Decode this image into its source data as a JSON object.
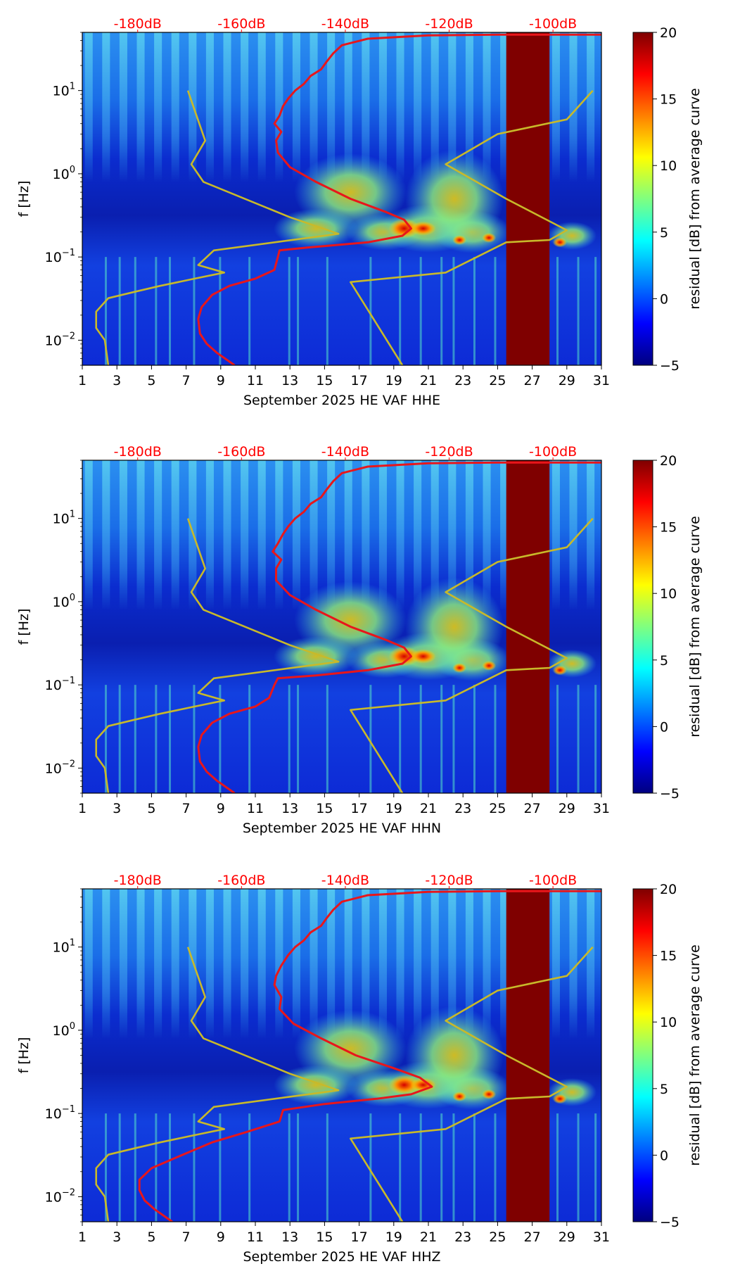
{
  "chart_data": [
    {
      "type": "heatmap",
      "title": "",
      "xlabel": "September 2025 HE VAF  HHE",
      "ylabel": "f [Hz]",
      "x_ticks": [
        "1",
        "3",
        "5",
        "7",
        "9",
        "11",
        "13",
        "15",
        "17",
        "19",
        "21",
        "23",
        "25",
        "27",
        "29",
        "31"
      ],
      "xlim": [
        1,
        31
      ],
      "y_ticks": [
        {
          "value": 0.01,
          "base": "10",
          "exp": "−2"
        },
        {
          "value": 0.1,
          "base": "10",
          "exp": "−1"
        },
        {
          "value": 1,
          "base": "10",
          "exp": "0"
        },
        {
          "value": 10,
          "base": "10",
          "exp": "1"
        }
      ],
      "ylim": [
        0.005,
        50
      ],
      "yscale": "log",
      "db_labels": [
        {
          "x": 4.2,
          "label": "-180dB"
        },
        {
          "x": 10.2,
          "label": "-160dB"
        },
        {
          "x": 16.2,
          "label": "-140dB"
        },
        {
          "x": 22.2,
          "label": "-120dB"
        },
        {
          "x": 28.2,
          "label": "-100dB"
        }
      ],
      "colorbar": {
        "label": "residual [dB] from average curve",
        "min": -5,
        "max": 20,
        "ticks": [
          "20",
          "15",
          "10",
          "5",
          "0",
          "−5"
        ],
        "colormap": "jet"
      },
      "saturated_band": [
        25.5,
        28.0
      ],
      "series": [
        {
          "name": "noise model curve (red)",
          "color": "#e8161b",
          "points": [
            [
              9.8,
              0.005
            ],
            [
              8.8,
              0.007
            ],
            [
              8.2,
              0.009
            ],
            [
              7.8,
              0.012
            ],
            [
              7.7,
              0.018
            ],
            [
              7.9,
              0.025
            ],
            [
              8.5,
              0.035
            ],
            [
              9.5,
              0.045
            ],
            [
              11.0,
              0.055
            ],
            [
              12.1,
              0.07
            ],
            [
              12.3,
              0.1
            ],
            [
              12.4,
              0.12
            ],
            [
              14.0,
              0.13
            ],
            [
              17.5,
              0.15
            ],
            [
              19.5,
              0.18
            ],
            [
              20.0,
              0.22
            ],
            [
              19.6,
              0.28
            ],
            [
              18.5,
              0.35
            ],
            [
              16.5,
              0.5
            ],
            [
              14.5,
              0.8
            ],
            [
              13.0,
              1.2
            ],
            [
              12.3,
              1.8
            ],
            [
              12.2,
              2.5
            ],
            [
              12.5,
              3.2
            ],
            [
              12.1,
              4.0
            ],
            [
              12.4,
              5.0
            ],
            [
              12.6,
              6.5
            ],
            [
              12.9,
              8.0
            ],
            [
              13.3,
              10.0
            ],
            [
              13.8,
              12.0
            ],
            [
              14.2,
              15.0
            ],
            [
              14.8,
              18.0
            ],
            [
              15.1,
              22.0
            ],
            [
              15.5,
              28.0
            ],
            [
              16.0,
              35.0
            ],
            [
              17.5,
              42.0
            ],
            [
              21.0,
              46.0
            ],
            [
              25.0,
              47.0
            ],
            [
              31.0,
              47.0
            ]
          ]
        },
        {
          "name": "reference curve (yellow)",
          "color": "#c8b92a",
          "points": [
            [
              2.5,
              0.005
            ],
            [
              2.3,
              0.01
            ],
            [
              1.8,
              0.014
            ],
            [
              1.8,
              0.022
            ],
            [
              2.5,
              0.032
            ],
            [
              4.0,
              0.038
            ],
            [
              5.5,
              0.045
            ],
            [
              7.5,
              0.055
            ],
            [
              9.2,
              0.065
            ],
            [
              7.7,
              0.08
            ],
            [
              8.6,
              0.12
            ],
            [
              15.8,
              0.19
            ],
            [
              13.0,
              0.3
            ],
            [
              8.0,
              0.8
            ],
            [
              7.3,
              1.3
            ],
            [
              8.1,
              2.5
            ],
            [
              7.6,
              5.0
            ],
            [
              7.1,
              10.0
            ],
            null,
            [
              19.5,
              0.005
            ],
            [
              16.5,
              0.05
            ],
            [
              22.0,
              0.065
            ],
            [
              25.5,
              0.15
            ],
            [
              28.0,
              0.16
            ],
            [
              29.0,
              0.21
            ],
            [
              25.5,
              0.5
            ],
            [
              22.0,
              1.3
            ],
            [
              25.0,
              3.0
            ],
            [
              29.0,
              4.5
            ],
            [
              30.5,
              10.0
            ]
          ]
        }
      ]
    },
    {
      "type": "heatmap",
      "title": "",
      "xlabel": "September 2025 HE VAF  HHN",
      "ylabel": "f [Hz]",
      "x_ticks": [
        "1",
        "3",
        "5",
        "7",
        "9",
        "11",
        "13",
        "15",
        "17",
        "19",
        "21",
        "23",
        "25",
        "27",
        "29",
        "31"
      ],
      "xlim": [
        1,
        31
      ],
      "y_ticks": [
        {
          "value": 0.01,
          "base": "10",
          "exp": "−2"
        },
        {
          "value": 0.1,
          "base": "10",
          "exp": "−1"
        },
        {
          "value": 1,
          "base": "10",
          "exp": "0"
        },
        {
          "value": 10,
          "base": "10",
          "exp": "1"
        }
      ],
      "ylim": [
        0.005,
        50
      ],
      "yscale": "log",
      "db_labels": [
        {
          "x": 4.2,
          "label": "-180dB"
        },
        {
          "x": 10.2,
          "label": "-160dB"
        },
        {
          "x": 16.2,
          "label": "-140dB"
        },
        {
          "x": 22.2,
          "label": "-120dB"
        },
        {
          "x": 28.2,
          "label": "-100dB"
        }
      ],
      "colorbar": {
        "label": "residual [dB] from average curve",
        "min": -5,
        "max": 20,
        "ticks": [
          "20",
          "15",
          "10",
          "5",
          "0",
          "−5"
        ],
        "colormap": "jet"
      },
      "saturated_band": [
        25.5,
        28.0
      ],
      "series": [
        {
          "name": "noise model curve (red)",
          "color": "#e8161b",
          "points": [
            [
              9.8,
              0.005
            ],
            [
              8.8,
              0.007
            ],
            [
              8.2,
              0.009
            ],
            [
              7.8,
              0.012
            ],
            [
              7.7,
              0.018
            ],
            [
              7.9,
              0.025
            ],
            [
              8.5,
              0.035
            ],
            [
              9.5,
              0.045
            ],
            [
              11.0,
              0.055
            ],
            [
              11.8,
              0.07
            ],
            [
              12.1,
              0.1
            ],
            [
              12.3,
              0.12
            ],
            [
              14.5,
              0.13
            ],
            [
              17.5,
              0.15
            ],
            [
              19.5,
              0.18
            ],
            [
              20.0,
              0.22
            ],
            [
              19.6,
              0.28
            ],
            [
              18.5,
              0.35
            ],
            [
              16.5,
              0.5
            ],
            [
              14.5,
              0.8
            ],
            [
              13.0,
              1.2
            ],
            [
              12.2,
              1.8
            ],
            [
              12.2,
              2.5
            ],
            [
              12.5,
              3.2
            ],
            [
              12.0,
              4.0
            ],
            [
              12.3,
              5.0
            ],
            [
              12.6,
              6.5
            ],
            [
              12.9,
              8.0
            ],
            [
              13.3,
              10.0
            ],
            [
              13.8,
              12.0
            ],
            [
              14.2,
              15.0
            ],
            [
              14.8,
              18.0
            ],
            [
              15.1,
              22.0
            ],
            [
              15.5,
              28.0
            ],
            [
              16.0,
              35.0
            ],
            [
              17.5,
              42.0
            ],
            [
              21.0,
              46.0
            ],
            [
              25.0,
              47.0
            ],
            [
              31.0,
              47.0
            ]
          ]
        },
        {
          "name": "reference curve (yellow)",
          "color": "#c8b92a",
          "points": [
            [
              2.5,
              0.005
            ],
            [
              2.3,
              0.01
            ],
            [
              1.8,
              0.014
            ],
            [
              1.8,
              0.022
            ],
            [
              2.5,
              0.032
            ],
            [
              4.0,
              0.038
            ],
            [
              5.5,
              0.045
            ],
            [
              7.5,
              0.055
            ],
            [
              9.2,
              0.065
            ],
            [
              7.7,
              0.08
            ],
            [
              8.6,
              0.12
            ],
            [
              15.8,
              0.19
            ],
            [
              13.0,
              0.3
            ],
            [
              8.0,
              0.8
            ],
            [
              7.3,
              1.3
            ],
            [
              8.1,
              2.5
            ],
            [
              7.6,
              5.0
            ],
            [
              7.1,
              10.0
            ],
            null,
            [
              19.5,
              0.005
            ],
            [
              16.5,
              0.05
            ],
            [
              22.0,
              0.065
            ],
            [
              25.5,
              0.15
            ],
            [
              28.0,
              0.16
            ],
            [
              29.0,
              0.21
            ],
            [
              25.5,
              0.5
            ],
            [
              22.0,
              1.3
            ],
            [
              25.0,
              3.0
            ],
            [
              29.0,
              4.5
            ],
            [
              30.5,
              10.0
            ]
          ]
        }
      ]
    },
    {
      "type": "heatmap",
      "title": "",
      "xlabel": "September 2025 HE VAF  HHZ",
      "ylabel": "f [Hz]",
      "x_ticks": [
        "1",
        "3",
        "5",
        "7",
        "9",
        "11",
        "13",
        "15",
        "17",
        "19",
        "21",
        "23",
        "25",
        "27",
        "29",
        "31"
      ],
      "xlim": [
        1,
        31
      ],
      "y_ticks": [
        {
          "value": 0.01,
          "base": "10",
          "exp": "−2"
        },
        {
          "value": 0.1,
          "base": "10",
          "exp": "−1"
        },
        {
          "value": 1,
          "base": "10",
          "exp": "0"
        },
        {
          "value": 10,
          "base": "10",
          "exp": "1"
        }
      ],
      "ylim": [
        0.005,
        50
      ],
      "yscale": "log",
      "db_labels": [
        {
          "x": 4.2,
          "label": "-180dB"
        },
        {
          "x": 10.2,
          "label": "-160dB"
        },
        {
          "x": 16.2,
          "label": "-140dB"
        },
        {
          "x": 22.2,
          "label": "-120dB"
        },
        {
          "x": 28.2,
          "label": "-100dB"
        }
      ],
      "colorbar": {
        "label": "residual [dB] from average curve",
        "min": -5,
        "max": 20,
        "ticks": [
          "20",
          "15",
          "10",
          "5",
          "0",
          "−5"
        ],
        "colormap": "jet"
      },
      "saturated_band": [
        25.5,
        28.0
      ],
      "series": [
        {
          "name": "noise model curve (red)",
          "color": "#e8161b",
          "points": [
            [
              6.2,
              0.005
            ],
            [
              5.2,
              0.007
            ],
            [
              4.6,
              0.009
            ],
            [
              4.3,
              0.012
            ],
            [
              4.3,
              0.016
            ],
            [
              5.0,
              0.022
            ],
            [
              6.5,
              0.03
            ],
            [
              8.5,
              0.045
            ],
            [
              10.5,
              0.06
            ],
            [
              12.4,
              0.08
            ],
            [
              12.6,
              0.11
            ],
            [
              15.0,
              0.13
            ],
            [
              18.0,
              0.15
            ],
            [
              20.0,
              0.17
            ],
            [
              21.2,
              0.21
            ],
            [
              20.5,
              0.27
            ],
            [
              19.0,
              0.35
            ],
            [
              16.8,
              0.5
            ],
            [
              14.8,
              0.8
            ],
            [
              13.2,
              1.2
            ],
            [
              12.4,
              1.8
            ],
            [
              12.5,
              2.5
            ],
            [
              12.1,
              3.5
            ],
            [
              12.2,
              4.5
            ],
            [
              12.5,
              6.0
            ],
            [
              12.9,
              8.0
            ],
            [
              13.3,
              10.0
            ],
            [
              13.8,
              12.0
            ],
            [
              14.2,
              15.0
            ],
            [
              14.8,
              18.0
            ],
            [
              15.1,
              22.0
            ],
            [
              15.5,
              28.0
            ],
            [
              16.0,
              35.0
            ],
            [
              17.5,
              42.0
            ],
            [
              21.0,
              46.0
            ],
            [
              25.0,
              47.0
            ],
            [
              31.0,
              47.0
            ]
          ]
        },
        {
          "name": "reference curve (yellow)",
          "color": "#c8b92a",
          "points": [
            [
              2.5,
              0.005
            ],
            [
              2.3,
              0.01
            ],
            [
              1.8,
              0.014
            ],
            [
              1.8,
              0.022
            ],
            [
              2.5,
              0.032
            ],
            [
              4.0,
              0.038
            ],
            [
              5.5,
              0.045
            ],
            [
              7.5,
              0.055
            ],
            [
              9.2,
              0.065
            ],
            [
              7.7,
              0.08
            ],
            [
              8.6,
              0.12
            ],
            [
              15.8,
              0.19
            ],
            [
              13.0,
              0.3
            ],
            [
              8.0,
              0.8
            ],
            [
              7.3,
              1.3
            ],
            [
              8.1,
              2.5
            ],
            [
              7.6,
              5.0
            ],
            [
              7.1,
              10.0
            ],
            null,
            [
              19.5,
              0.005
            ],
            [
              16.5,
              0.05
            ],
            [
              22.0,
              0.065
            ],
            [
              25.5,
              0.15
            ],
            [
              28.0,
              0.16
            ],
            [
              29.0,
              0.21
            ],
            [
              25.5,
              0.5
            ],
            [
              22.0,
              1.3
            ],
            [
              25.0,
              3.0
            ],
            [
              29.0,
              4.5
            ],
            [
              30.5,
              10.0
            ]
          ]
        }
      ]
    }
  ]
}
